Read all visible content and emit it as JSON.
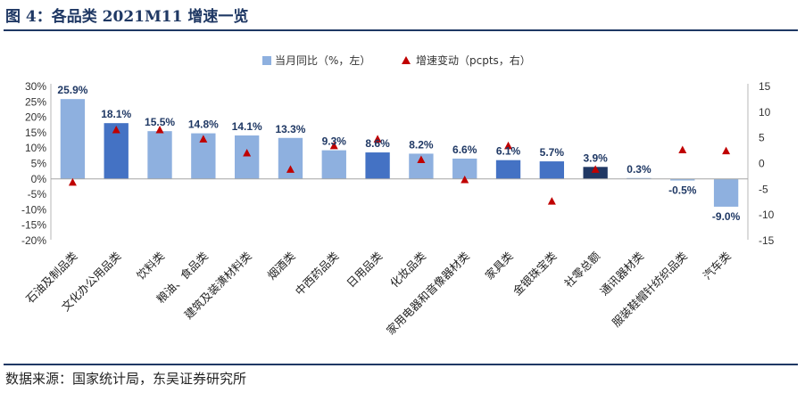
{
  "header": {
    "title": "图 4：各品类 2021M11 增速一览"
  },
  "footer": {
    "source": "数据来源：国家统计局，东吴证券研究所"
  },
  "colors": {
    "bar_default": "#8eb0df",
    "bar_highlight": "#4472c4",
    "bar_total": "#203864",
    "marker": "#c00000",
    "title": "#1f3864"
  },
  "chart_data": {
    "type": "bar",
    "categories": [
      "石油及制品类",
      "文化办公用品类",
      "饮料类",
      "粮油、食品类",
      "建筑及装潢材料类",
      "烟酒类",
      "中西药品类",
      "日用品类",
      "化妆品类",
      "家用电器和音像器材类",
      "家具类",
      "金银珠宝类",
      "社零总额",
      "通讯器材类",
      "服装鞋帽针纺织品类",
      "汽车类"
    ],
    "series": [
      {
        "name": "当月同比（%，左）",
        "type": "bar",
        "axis": "left",
        "values": [
          25.9,
          18.1,
          15.5,
          14.8,
          14.1,
          13.3,
          9.3,
          8.6,
          8.2,
          6.6,
          6.1,
          5.7,
          3.9,
          0.3,
          -0.5,
          -9.0
        ],
        "labels": [
          "25.9%",
          "18.1%",
          "15.5%",
          "14.8%",
          "14.1%",
          "13.3%",
          "9.3%",
          "8.6%",
          "8.2%",
          "6.6%",
          "6.1%",
          "5.7%",
          "3.9%",
          "0.3%",
          "-0.5%",
          "-9.0%"
        ],
        "color_role": [
          "default",
          "highlight",
          "default",
          "default",
          "default",
          "default",
          "default",
          "highlight",
          "default",
          "default",
          "highlight",
          "highlight",
          "total",
          "default",
          "default",
          "default"
        ]
      },
      {
        "name": "增速变动（pcpts，右）",
        "type": "scatter",
        "axis": "right",
        "values": [
          -3.7,
          6.5,
          6.5,
          4.7,
          2.0,
          -1.2,
          3.4,
          4.7,
          0.7,
          -3.2,
          3.4,
          -7.4,
          -1.2,
          null,
          2.6,
          2.4
        ]
      }
    ],
    "y_left": {
      "min": -20,
      "max": 30,
      "step": 5,
      "ticks": [
        "-20%",
        "-15%",
        "-10%",
        "-5%",
        "0%",
        "5%",
        "10%",
        "15%",
        "20%",
        "25%",
        "30%"
      ]
    },
    "y_right": {
      "min": -15,
      "max": 15,
      "step": 5,
      "ticks": [
        "-15",
        "-10",
        "-5",
        "0",
        "5",
        "10",
        "15"
      ]
    },
    "legend": {
      "position": "top"
    },
    "grid": false
  }
}
